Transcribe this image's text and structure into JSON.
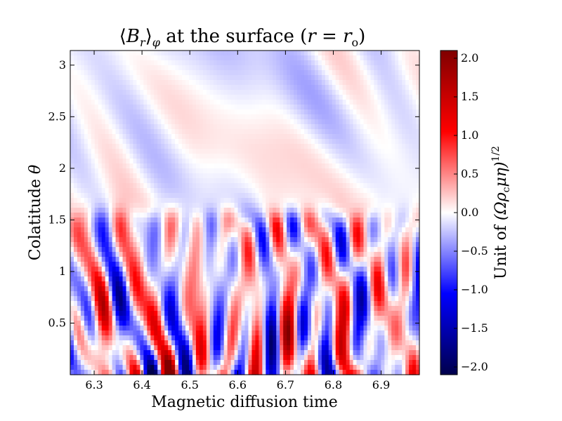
{
  "chart_data": {
    "type": "heatmap",
    "title": "⟨B_r⟩_φ at the surface (r = r_o)",
    "title_parts": {
      "symbol": "B",
      "symbol_sub": "r",
      "average_sub": "φ",
      "text": " at the surface ",
      "condition_var": "r",
      "condition_rhs": "r",
      "condition_rhs_sub": "o"
    },
    "xlabel": "Magnetic diffusion time",
    "ylabel": "Colatitude θ",
    "xlim": [
      6.25,
      6.98
    ],
    "ylim": [
      0,
      3.1416
    ],
    "xticks": [
      6.3,
      6.4,
      6.5,
      6.6,
      6.7,
      6.8,
      6.9
    ],
    "xtick_labels": [
      "6.3",
      "6.4",
      "6.5",
      "6.6",
      "6.7",
      "6.8",
      "6.9"
    ],
    "yticks": [
      0.5,
      1,
      1.5,
      2,
      2.5,
      3
    ],
    "ytick_labels": [
      "0.5",
      "1",
      "1.5",
      "2",
      "2.5",
      "3"
    ],
    "colorbar": {
      "label": "Unit of (Ωρ_c μη)^1/2",
      "label_parts": {
        "prefix": "Unit of ",
        "expr": "(Ωρ",
        "sub": "c",
        "expr2": "μη)",
        "sup": "1/2"
      },
      "colormap": "seismic",
      "range": [
        -2.1,
        2.1
      ],
      "ticks": [
        2.0,
        1.5,
        1.0,
        0.5,
        0.0,
        -0.5,
        -1.0,
        -1.5,
        -2.0
      ],
      "tick_labels": [
        "2.0",
        "1.5",
        "1.0",
        "0.5",
        "0.0",
        "−0.5",
        "−1.0",
        "−1.5",
        "−2.0"
      ]
    },
    "field_description": {
      "quiet_band_colatitude": [
        1.55,
        3.1416
      ],
      "active_band_colatitude": [
        0,
        1.55
      ],
      "quiet_amplitude": 0.15,
      "active_amplitude": 1.2,
      "peak_amplitude": 2.1
    }
  }
}
